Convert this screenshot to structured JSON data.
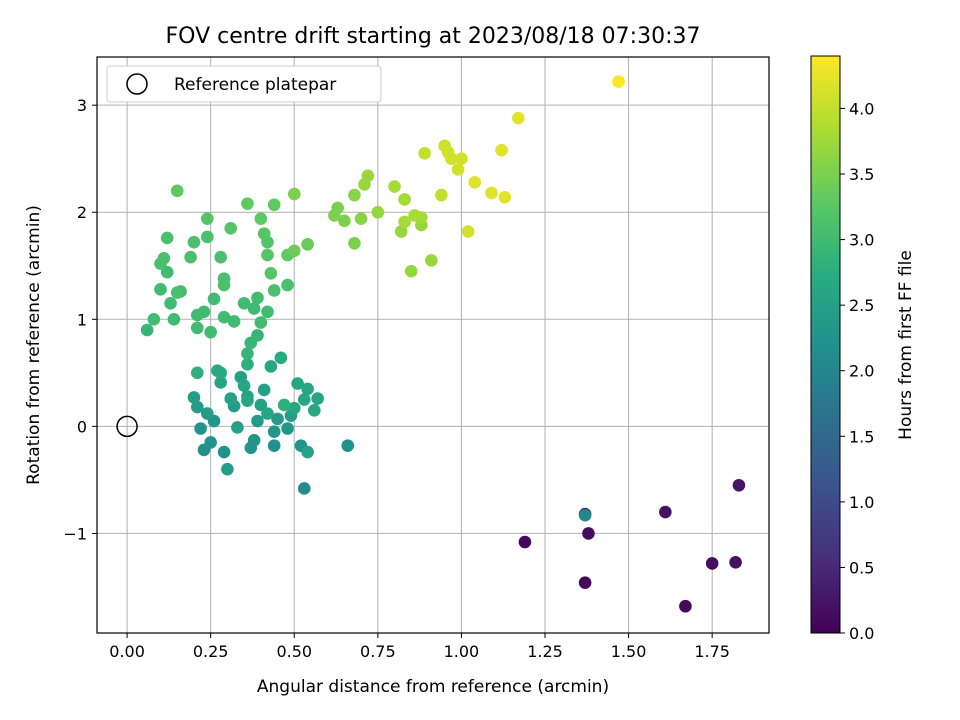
{
  "chart_data": {
    "type": "scatter",
    "title": "FOV centre drift starting at 2023/08/18 07:30:37",
    "xlabel": "Angular distance from reference (arcmin)",
    "ylabel": "Rotation from reference (arcmin)",
    "xlim": [
      -0.09,
      1.92
    ],
    "ylim": [
      -1.93,
      3.45
    ],
    "xticks": [
      0.0,
      0.25,
      0.5,
      0.75,
      1.0,
      1.25,
      1.5,
      1.75
    ],
    "xtick_labels": [
      "0.00",
      "0.25",
      "0.50",
      "0.75",
      "1.00",
      "1.25",
      "1.50",
      "1.75"
    ],
    "yticks": [
      -1,
      0,
      1,
      2,
      3
    ],
    "ytick_labels": [
      "−1",
      "0",
      "1",
      "2",
      "3"
    ],
    "grid": true,
    "legend_position": "top-left",
    "legend": [
      {
        "label": "Reference platepar",
        "marker": "open-circle",
        "x": 0.0,
        "y": 0.0
      }
    ],
    "colorbar": {
      "label": "Hours from first FF file",
      "colormap": "viridis",
      "range": [
        0.0,
        4.4
      ],
      "ticks": [
        0.0,
        0.5,
        1.0,
        1.5,
        2.0,
        2.5,
        3.0,
        3.5,
        4.0
      ],
      "tick_labels": [
        "0.0",
        "0.5",
        "1.0",
        "1.5",
        "2.0",
        "2.5",
        "3.0",
        "3.5",
        "4.0"
      ]
    },
    "points": [
      [
        1.19,
        -1.08,
        0.08
      ],
      [
        1.37,
        -0.82,
        0.12
      ],
      [
        1.37,
        -1.46,
        0.1
      ],
      [
        1.38,
        -1.0,
        0.15
      ],
      [
        1.61,
        -0.8,
        0.2
      ],
      [
        1.67,
        -1.68,
        0.1
      ],
      [
        1.75,
        -1.28,
        0.15
      ],
      [
        1.82,
        -1.27,
        0.2
      ],
      [
        1.83,
        -0.55,
        0.25
      ],
      [
        1.37,
        -0.83,
        2.0
      ],
      [
        0.66,
        -0.18,
        2.2
      ],
      [
        0.53,
        -0.58,
        2.1
      ],
      [
        0.2,
        0.27,
        2.4
      ],
      [
        0.21,
        0.18,
        2.4
      ],
      [
        0.22,
        -0.02,
        2.3
      ],
      [
        0.23,
        -0.22,
        2.2
      ],
      [
        0.25,
        -0.15,
        2.3
      ],
      [
        0.24,
        0.12,
        2.4
      ],
      [
        0.26,
        0.05,
        2.3
      ],
      [
        0.29,
        -0.24,
        2.2
      ],
      [
        0.3,
        -0.4,
        2.4
      ],
      [
        0.31,
        0.26,
        2.5
      ],
      [
        0.32,
        0.19,
        2.4
      ],
      [
        0.34,
        0.46,
        2.5
      ],
      [
        0.35,
        0.38,
        2.6
      ],
      [
        0.36,
        0.28,
        2.5
      ],
      [
        0.37,
        -0.2,
        2.3
      ],
      [
        0.38,
        -0.13,
        2.3
      ],
      [
        0.39,
        0.05,
        2.4
      ],
      [
        0.4,
        0.2,
        2.5
      ],
      [
        0.41,
        0.34,
        2.5
      ],
      [
        0.42,
        0.12,
        2.6
      ],
      [
        0.43,
        0.56,
        2.6
      ],
      [
        0.44,
        -0.05,
        2.3
      ],
      [
        0.44,
        -0.18,
        2.2
      ],
      [
        0.45,
        0.07,
        2.4
      ],
      [
        0.46,
        0.64,
        2.7
      ],
      [
        0.47,
        0.2,
        2.8
      ],
      [
        0.48,
        -0.02,
        2.3
      ],
      [
        0.49,
        0.1,
        2.4
      ],
      [
        0.5,
        0.17,
        2.6
      ],
      [
        0.51,
        0.4,
        2.6
      ],
      [
        0.52,
        -0.18,
        2.3
      ],
      [
        0.53,
        0.25,
        2.6
      ],
      [
        0.54,
        -0.24,
        2.5
      ],
      [
        0.54,
        0.35,
        2.6
      ],
      [
        0.56,
        0.15,
        2.6
      ],
      [
        0.57,
        0.26,
        2.6
      ],
      [
        0.21,
        0.5,
        2.8
      ],
      [
        0.28,
        0.5,
        2.7
      ],
      [
        0.28,
        0.41,
        2.6
      ],
      [
        0.36,
        0.24,
        2.6
      ],
      [
        0.27,
        0.52,
        2.7
      ],
      [
        0.33,
        -0.01,
        2.5
      ],
      [
        0.36,
        0.58,
        2.8
      ],
      [
        0.36,
        0.68,
        2.9
      ],
      [
        0.37,
        0.78,
        2.9
      ],
      [
        0.39,
        0.85,
        2.9
      ],
      [
        0.4,
        0.97,
        3.0
      ],
      [
        0.25,
        0.88,
        3.0
      ],
      [
        0.23,
        1.07,
        3.0
      ],
      [
        0.21,
        0.92,
        3.0
      ],
      [
        0.29,
        1.32,
        3.1
      ],
      [
        0.29,
        1.02,
        3.0
      ],
      [
        0.32,
        0.98,
        3.0
      ],
      [
        0.26,
        1.19,
        3.0
      ],
      [
        0.35,
        1.15,
        3.0
      ],
      [
        0.38,
        1.1,
        3.0
      ],
      [
        0.39,
        1.2,
        3.0
      ],
      [
        0.42,
        1.07,
        3.0
      ],
      [
        0.44,
        1.27,
        3.1
      ],
      [
        0.48,
        1.32,
        3.1
      ],
      [
        0.06,
        0.9,
        2.9
      ],
      [
        0.08,
        1.0,
        3.0
      ],
      [
        0.1,
        1.28,
        3.0
      ],
      [
        0.12,
        1.44,
        3.0
      ],
      [
        0.13,
        1.15,
        3.0
      ],
      [
        0.14,
        1.0,
        3.0
      ],
      [
        0.15,
        1.25,
        3.1
      ],
      [
        0.1,
        1.52,
        3.1
      ],
      [
        0.11,
        1.57,
        3.1
      ],
      [
        0.12,
        1.76,
        3.1
      ],
      [
        0.19,
        1.58,
        3.1
      ],
      [
        0.2,
        1.72,
        3.1
      ],
      [
        0.24,
        1.77,
        3.1
      ],
      [
        0.28,
        1.58,
        3.1
      ],
      [
        0.29,
        1.38,
        3.1
      ],
      [
        0.31,
        1.85,
        3.2
      ],
      [
        0.36,
        2.08,
        3.3
      ],
      [
        0.4,
        1.94,
        3.3
      ],
      [
        0.41,
        1.8,
        3.2
      ],
      [
        0.42,
        1.72,
        3.2
      ],
      [
        0.42,
        1.6,
        3.2
      ],
      [
        0.43,
        1.43,
        3.2
      ],
      [
        0.44,
        2.07,
        3.3
      ],
      [
        0.48,
        1.6,
        3.3
      ],
      [
        0.5,
        1.64,
        3.4
      ],
      [
        0.54,
        1.7,
        3.4
      ],
      [
        0.15,
        2.2,
        3.3
      ],
      [
        0.16,
        1.26,
        3.0
      ],
      [
        0.24,
        1.94,
        3.2
      ],
      [
        0.21,
        1.04,
        3.0
      ],
      [
        0.5,
        2.17,
        3.5
      ],
      [
        0.62,
        1.97,
        3.5
      ],
      [
        0.63,
        2.04,
        3.5
      ],
      [
        0.65,
        1.92,
        3.5
      ],
      [
        0.68,
        2.16,
        3.6
      ],
      [
        0.68,
        1.71,
        3.5
      ],
      [
        0.7,
        1.94,
        3.6
      ],
      [
        0.71,
        2.26,
        3.7
      ],
      [
        0.72,
        2.34,
        3.7
      ],
      [
        0.75,
        2.0,
        3.7
      ],
      [
        0.8,
        2.24,
        3.8
      ],
      [
        0.82,
        1.82,
        3.7
      ],
      [
        0.83,
        2.12,
        3.8
      ],
      [
        0.83,
        1.91,
        3.8
      ],
      [
        0.85,
        1.45,
        3.7
      ],
      [
        0.86,
        1.97,
        3.8
      ],
      [
        0.88,
        1.95,
        3.8
      ],
      [
        0.88,
        1.88,
        3.7
      ],
      [
        0.89,
        2.55,
        4.0
      ],
      [
        0.91,
        1.55,
        3.7
      ],
      [
        0.94,
        2.16,
        4.0
      ],
      [
        0.95,
        2.62,
        4.1
      ],
      [
        0.96,
        2.56,
        4.1
      ],
      [
        0.97,
        2.5,
        4.1
      ],
      [
        0.99,
        2.4,
        4.1
      ],
      [
        1.0,
        2.5,
        4.1
      ],
      [
        1.02,
        1.82,
        4.1
      ],
      [
        1.04,
        2.28,
        4.2
      ],
      [
        1.09,
        2.18,
        4.2
      ],
      [
        1.12,
        2.58,
        4.2
      ],
      [
        1.13,
        2.14,
        4.2
      ],
      [
        1.17,
        2.88,
        4.2
      ],
      [
        1.47,
        3.22,
        4.4
      ]
    ]
  }
}
